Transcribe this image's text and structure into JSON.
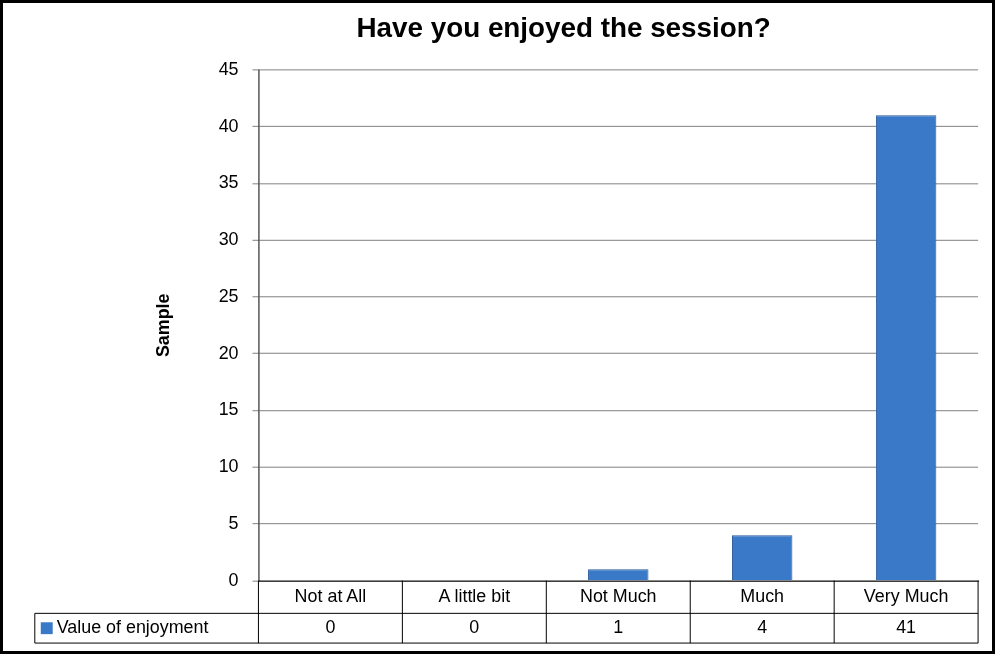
{
  "chart_data": {
    "type": "bar",
    "title": "Have you enjoyed the session?",
    "ylabel": "Sample",
    "categories": [
      "Not at All",
      "A little bit",
      "Not Much",
      "Much",
      "Very Much"
    ],
    "series": [
      {
        "name": "Value of enjoyment",
        "color": "#3a78c8",
        "values": [
          0,
          0,
          1,
          4,
          41
        ]
      }
    ],
    "ylim": [
      0,
      45
    ],
    "yticks": [
      0,
      5,
      10,
      15,
      20,
      25,
      30,
      35,
      40,
      45
    ],
    "grid": "y",
    "legend": "bottom",
    "data_labels": true
  }
}
